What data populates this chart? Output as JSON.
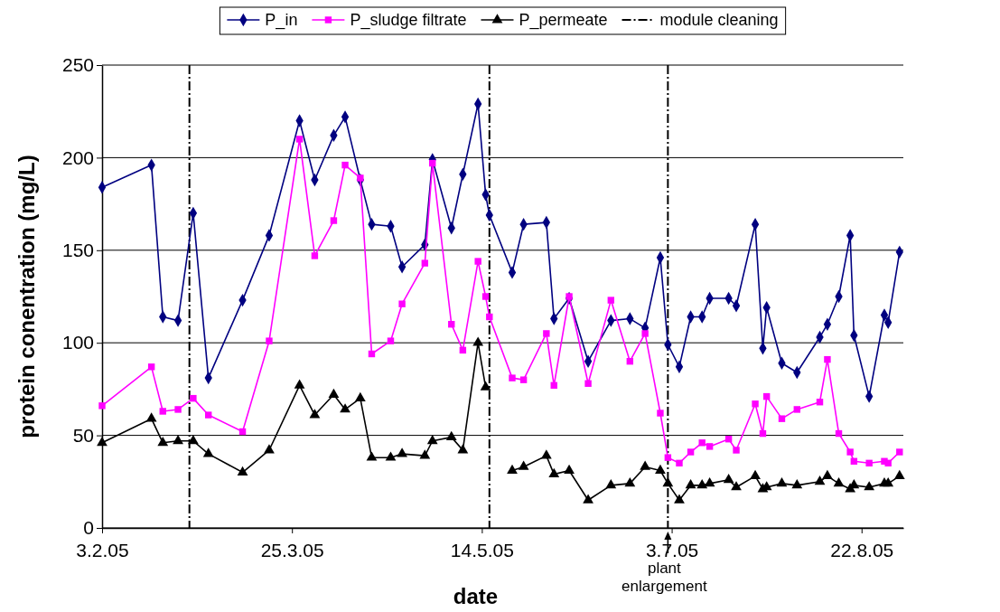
{
  "chart_data": {
    "type": "line",
    "xlabel": "date",
    "ylabel": "protein conentration (mg/L)",
    "x": [
      "2005-02-03",
      "2005-02-16",
      "2005-02-19",
      "2005-02-23",
      "2005-02-27",
      "2005-03-03",
      "2005-03-12",
      "2005-03-19",
      "2005-03-27",
      "2005-03-31",
      "2005-04-05",
      "2005-04-08",
      "2005-04-12",
      "2005-04-15",
      "2005-04-20",
      "2005-04-23",
      "2005-04-29",
      "2005-05-01",
      "2005-05-06",
      "2005-05-09",
      "2005-05-13",
      "2005-05-15",
      "2005-05-16",
      "2005-05-22",
      "2005-05-25",
      "2005-05-31",
      "2005-06-02",
      "2005-06-06",
      "2005-06-11",
      "2005-06-17",
      "2005-06-22",
      "2005-06-26",
      "2005-06-30",
      "2005-07-02",
      "2005-07-05",
      "2005-07-08",
      "2005-07-11",
      "2005-07-13",
      "2005-07-18",
      "2005-07-20",
      "2005-07-25",
      "2005-07-27",
      "2005-07-28",
      "2005-08-01",
      "2005-08-05",
      "2005-08-11",
      "2005-08-13",
      "2005-08-16",
      "2005-08-19",
      "2005-08-20",
      "2005-08-24",
      "2005-08-28",
      "2005-08-29",
      "2005-09-01"
    ],
    "series": [
      {
        "name": "P_in",
        "color": "#000080",
        "marker": "diamond",
        "values": [
          184,
          196,
          114,
          112,
          170,
          81,
          123,
          158,
          220,
          188,
          212,
          222,
          188,
          164,
          163,
          141,
          153,
          199,
          162,
          191,
          229,
          180,
          169,
          138,
          164,
          165,
          113,
          124,
          90,
          112,
          113,
          108,
          146,
          99,
          87,
          114,
          114,
          124,
          124,
          120,
          164,
          97,
          119,
          89,
          84,
          103,
          110,
          125,
          158,
          104,
          71,
          115,
          111,
          149
        ]
      },
      {
        "name": "P_sludge filtrate",
        "color": "#ff00ff",
        "marker": "square",
        "values": [
          66,
          87,
          63,
          64,
          70,
          61,
          52,
          101,
          210,
          147,
          166,
          196,
          189,
          94,
          101,
          121,
          143,
          197,
          110,
          96,
          144,
          125,
          114,
          81,
          80,
          105,
          77,
          125,
          78,
          123,
          90,
          105,
          62,
          38,
          35,
          41,
          46,
          44,
          48,
          42,
          67,
          51,
          71,
          59,
          64,
          68,
          91,
          51,
          41,
          36,
          35,
          36,
          35,
          41
        ]
      },
      {
        "name": "P_permeate",
        "color": "#000000",
        "marker": "triangle",
        "values": [
          46,
          59,
          46,
          47,
          47,
          40,
          30,
          42,
          77,
          61,
          72,
          64,
          70,
          38,
          38,
          40,
          39,
          47,
          49,
          42,
          100,
          76,
          null,
          31,
          33,
          39,
          29,
          31,
          15,
          23,
          24,
          33,
          31,
          24,
          15,
          23,
          23,
          24,
          26,
          22,
          28,
          21,
          22,
          24,
          23,
          25,
          28,
          24,
          21,
          23,
          22,
          24,
          24,
          28
        ]
      }
    ],
    "xlim": [
      "2005-02-03",
      "2005-09-02"
    ],
    "xticks": [
      {
        "value": "2005-02-03",
        "label": "3.2.05"
      },
      {
        "value": "2005-03-25",
        "label": "25.3.05"
      },
      {
        "value": "2005-05-14",
        "label": "14.5.05"
      },
      {
        "value": "2005-07-03",
        "label": "3.7.05"
      },
      {
        "value": "2005-08-22",
        "label": "22.8.05"
      }
    ],
    "ylim": [
      0,
      250
    ],
    "yticks": [
      0,
      50,
      100,
      150,
      200,
      250
    ],
    "grid": "y",
    "legend": "top",
    "ref_lines": [
      {
        "axis": "x",
        "value": "2005-02-26",
        "label": "module cleaning",
        "color": "#000000",
        "line_style": "dashdot"
      },
      {
        "axis": "x",
        "value": "2005-05-16",
        "color": "#000000",
        "line_style": "dashdot"
      },
      {
        "axis": "x",
        "value": "2005-07-02",
        "color": "#000000",
        "line_style": "dashdot"
      }
    ],
    "annotations": [
      "plant enlargement"
    ]
  }
}
